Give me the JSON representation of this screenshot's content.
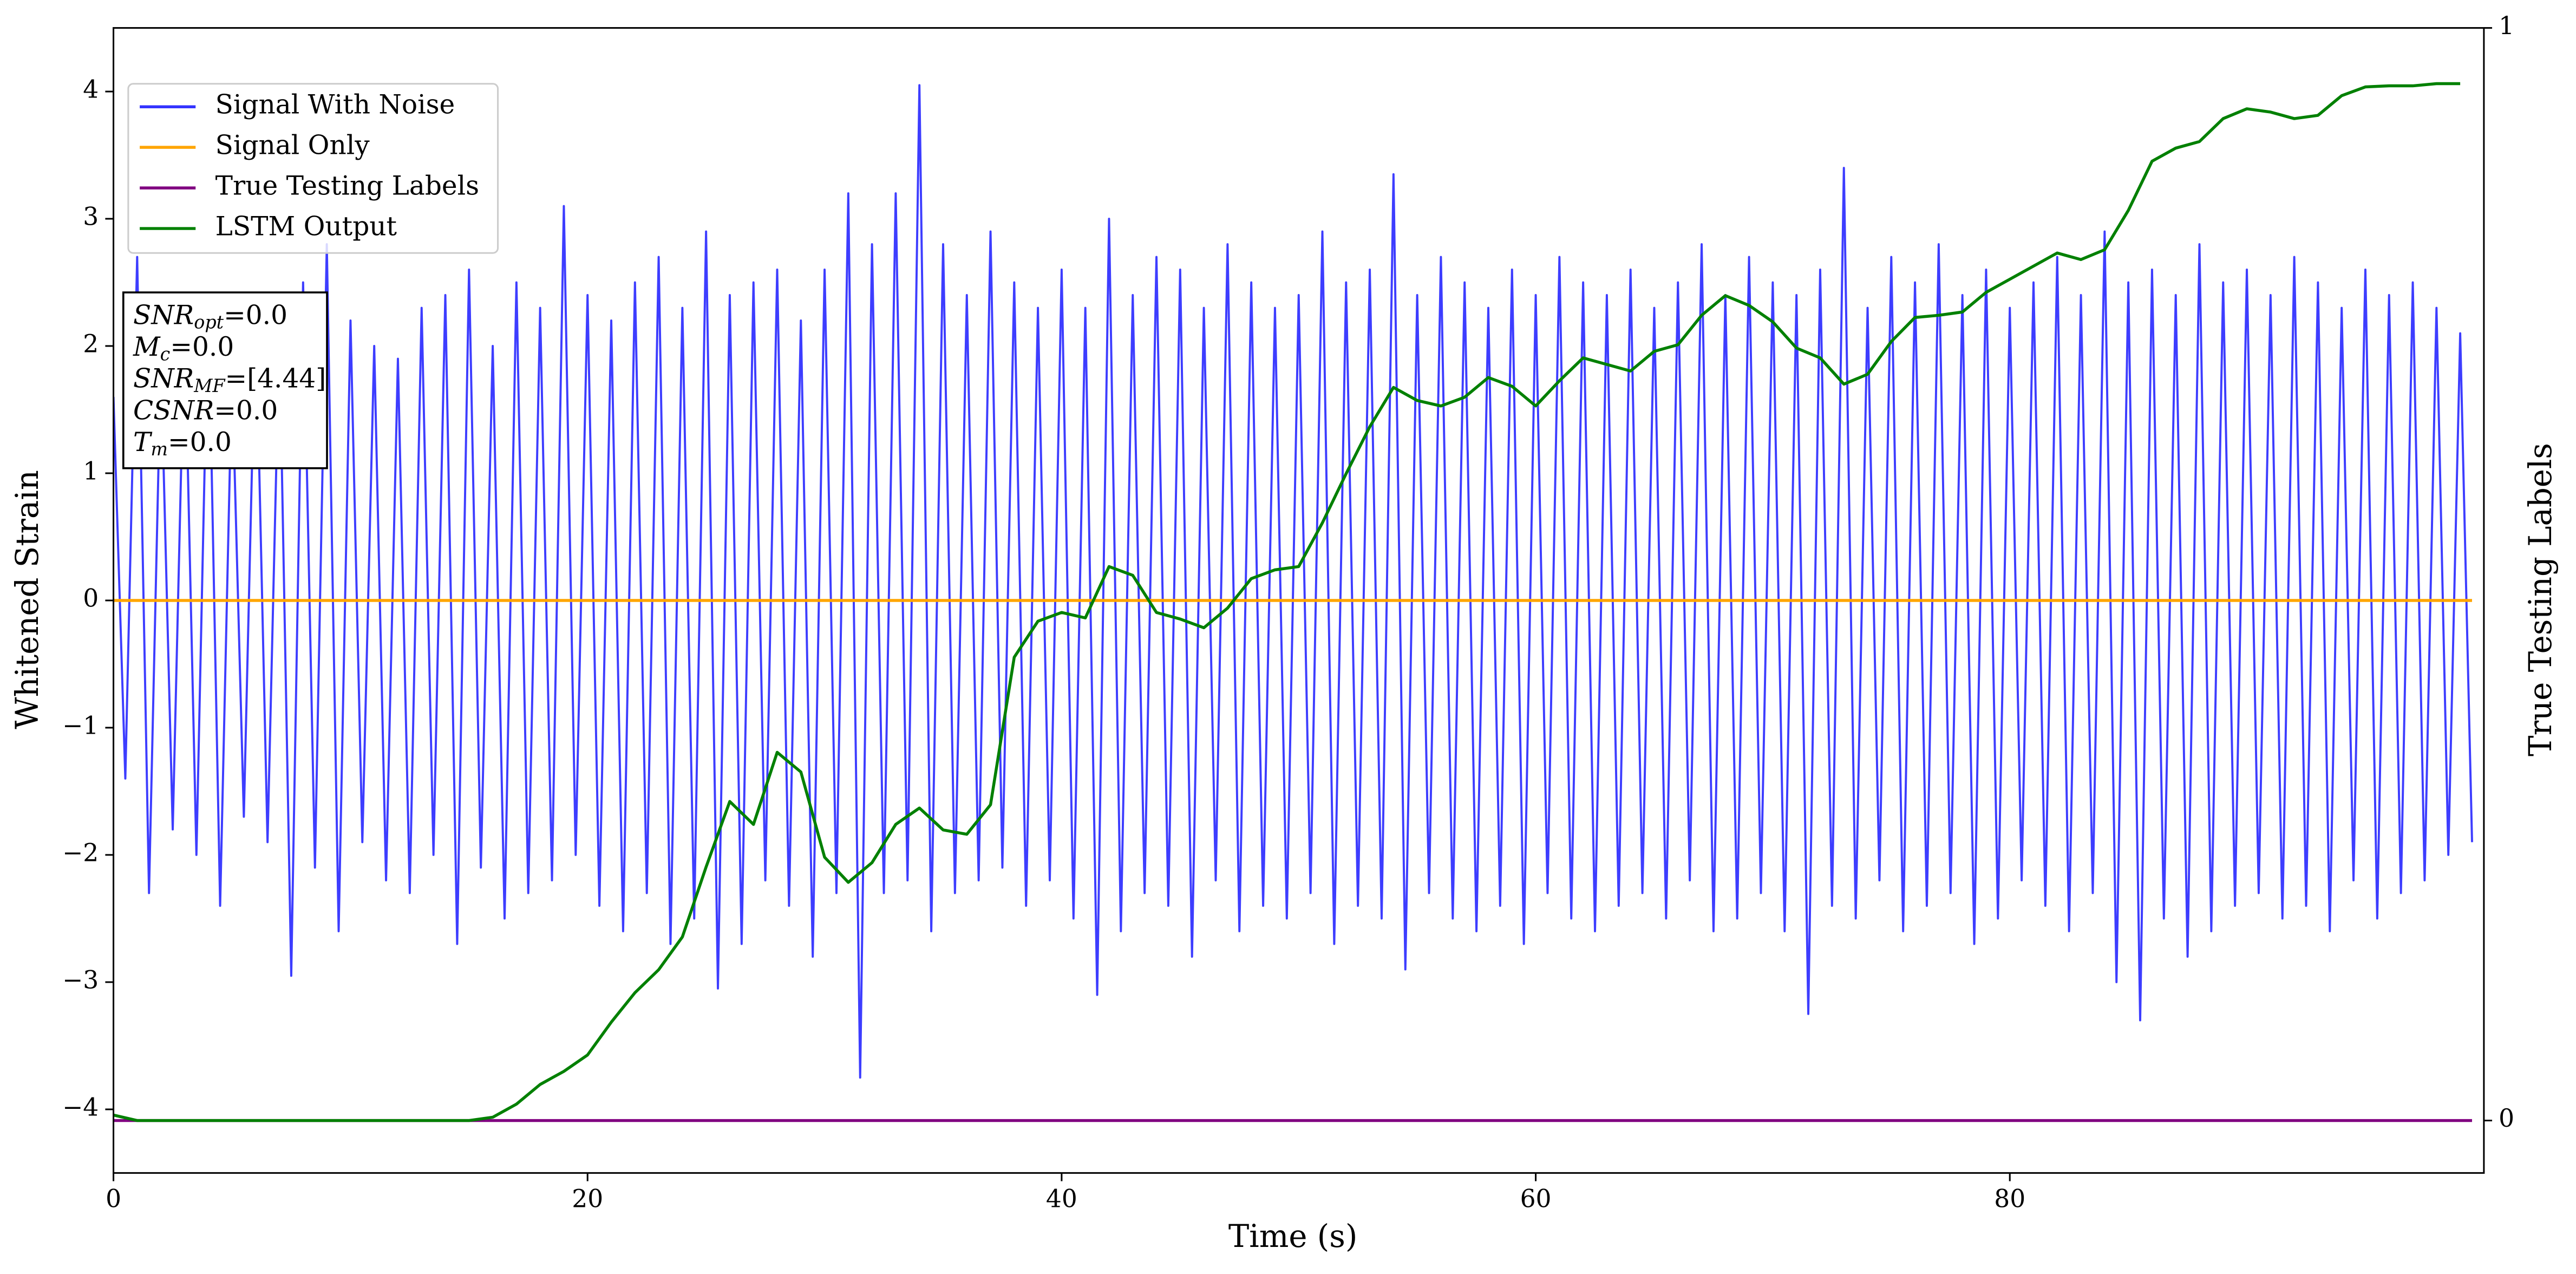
{
  "chart_data": {
    "type": "line",
    "xlabel": "Time (s)",
    "ylabel": "Whitened Strain",
    "y2label": "True Testing Labels",
    "xlim": [
      0,
      100
    ],
    "xticks": [
      0,
      20,
      40,
      60,
      80
    ],
    "ylim": [
      -4.5,
      4.5
    ],
    "yticks": [
      {
        "value": -4,
        "label": "−4"
      },
      {
        "value": -3,
        "label": "−3"
      },
      {
        "value": -2,
        "label": "−2"
      },
      {
        "value": -1,
        "label": "−1"
      },
      0,
      1,
      2,
      3,
      4
    ],
    "y2lim": [
      -0.048,
      1.0
    ],
    "y2ticks": [
      0,
      1
    ],
    "grid": false,
    "legend": "upper left",
    "annotation_lines": [
      {
        "text": "SNR",
        "sub": "opt",
        "value": "=0.0"
      },
      {
        "text": "M",
        "sub": "c",
        "value": "=0.0"
      },
      {
        "text": "SNR",
        "sub": "MF",
        "value": "=[4.44]"
      },
      {
        "text": "CSNR",
        "value": "=0.0"
      },
      {
        "text": "T",
        "sub": "m",
        "value": "=0.0"
      }
    ],
    "series": [
      {
        "name": "Signal With Noise",
        "color": "#3333ff",
        "x": [
          0,
          0.5,
          1,
          1.5,
          2,
          2.5,
          3,
          3.5,
          4,
          4.5,
          5,
          5.5,
          6,
          6.5,
          7,
          7.5,
          8,
          8.5,
          9,
          9.5,
          10,
          10.5,
          11,
          11.5,
          12,
          12.5,
          13,
          13.5,
          14,
          14.5,
          15,
          15.5,
          16,
          16.5,
          17,
          17.5,
          18,
          18.5,
          19,
          19.5,
          20,
          20.5,
          21,
          21.5,
          22,
          22.5,
          23,
          23.5,
          24,
          24.5,
          25,
          25.5,
          26,
          26.5,
          27,
          27.5,
          28,
          28.5,
          29,
          29.5,
          30,
          30.5,
          31,
          31.5,
          32,
          32.5,
          33,
          33.5,
          34,
          34.5,
          35,
          35.5,
          36,
          36.5,
          37,
          37.5,
          38,
          38.5,
          39,
          39.5,
          40,
          40.5,
          41,
          41.5,
          42,
          42.5,
          43,
          43.5,
          44,
          44.5,
          45,
          45.5,
          46,
          46.5,
          47,
          47.5,
          48,
          48.5,
          49,
          49.5,
          50,
          50.5,
          51,
          51.5,
          52,
          52.5,
          53,
          53.5,
          54,
          54.5,
          55,
          55.5,
          56,
          56.5,
          57,
          57.5,
          58,
          58.5,
          59,
          59.5,
          60,
          60.5,
          61,
          61.5,
          62,
          62.5,
          63,
          63.5,
          64,
          64.5,
          65,
          65.5,
          66,
          66.5,
          67,
          67.5,
          68,
          68.5,
          69,
          69.5,
          70,
          70.5,
          71,
          71.5,
          72,
          72.5,
          73,
          73.5,
          74,
          74.5,
          75,
          75.5,
          76,
          76.5,
          77,
          77.5,
          78,
          78.5,
          79,
          79.5,
          80,
          80.5,
          81,
          81.5,
          82,
          82.5,
          83,
          83.5,
          84,
          84.5,
          85,
          85.5,
          86,
          86.5,
          87,
          87.5,
          88,
          88.5,
          89,
          89.5,
          90,
          90.5,
          91,
          91.5,
          92,
          92.5,
          93,
          93.5,
          94,
          94.5,
          95,
          95.5,
          96,
          96.5,
          97,
          97.5,
          98,
          98.5,
          99,
          99.5
        ],
        "values": [
          1.6,
          -1.4,
          2.7,
          -2.3,
          1.9,
          -1.8,
          2.2,
          -2.0,
          2.4,
          -2.4,
          1.8,
          -1.7,
          2.3,
          -1.9,
          2.1,
          -2.95,
          2.5,
          -2.1,
          2.8,
          -2.6,
          2.2,
          -1.9,
          2.0,
          -2.2,
          1.9,
          -2.3,
          2.3,
          -2.0,
          2.4,
          -2.7,
          2.6,
          -2.1,
          2.0,
          -2.5,
          2.5,
          -2.3,
          2.3,
          -2.2,
          3.1,
          -2.0,
          2.4,
          -2.4,
          2.2,
          -2.6,
          2.5,
          -2.3,
          2.7,
          -2.7,
          2.3,
          -2.5,
          2.9,
          -3.05,
          2.4,
          -2.7,
          2.5,
          -2.2,
          2.6,
          -2.4,
          2.2,
          -2.8,
          2.6,
          -2.3,
          3.2,
          -3.75,
          2.8,
          -2.3,
          3.2,
          -2.2,
          4.05,
          -2.6,
          2.8,
          -2.3,
          2.4,
          -2.2,
          2.9,
          -2.1,
          2.5,
          -2.4,
          2.3,
          -2.2,
          2.6,
          -2.5,
          2.3,
          -3.1,
          3.0,
          -2.6,
          2.4,
          -2.3,
          2.7,
          -2.4,
          2.6,
          -2.8,
          2.3,
          -2.2,
          2.8,
          -2.6,
          2.5,
          -2.4,
          2.3,
          -2.5,
          2.4,
          -2.3,
          2.9,
          -2.7,
          2.5,
          -2.4,
          2.6,
          -2.5,
          3.35,
          -2.9,
          2.4,
          -2.3,
          2.7,
          -2.5,
          2.5,
          -2.6,
          2.3,
          -2.4,
          2.6,
          -2.7,
          2.4,
          -2.3,
          2.7,
          -2.5,
          2.5,
          -2.6,
          2.4,
          -2.4,
          2.6,
          -2.3,
          2.3,
          -2.5,
          2.5,
          -2.2,
          2.8,
          -2.6,
          2.4,
          -2.5,
          2.7,
          -2.3,
          2.5,
          -2.6,
          2.4,
          -3.25,
          2.6,
          -2.4,
          3.4,
          -2.5,
          2.3,
          -2.2,
          2.7,
          -2.6,
          2.5,
          -2.4,
          2.8,
          -2.3,
          2.4,
          -2.7,
          2.6,
          -2.5,
          2.3,
          -2.2,
          2.5,
          -2.4,
          2.7,
          -2.6,
          2.4,
          -2.3,
          2.9,
          -3.0,
          2.5,
          -3.3,
          2.6,
          -2.5,
          2.4,
          -2.8,
          2.8,
          -2.6,
          2.5,
          -2.4,
          2.6,
          -2.3,
          2.4,
          -2.5,
          2.7,
          -2.4,
          2.5,
          -2.6,
          2.3,
          -2.2,
          2.6,
          -2.5,
          2.4,
          -2.3,
          2.5,
          -2.2,
          2.3,
          -2.0,
          2.1,
          -1.9
        ]
      },
      {
        "name": "Signal Only",
        "color": "#ffa500",
        "x": [
          0,
          99.5
        ],
        "values": [
          0,
          0
        ]
      },
      {
        "name": "True Testing Labels",
        "color": "#800080",
        "axis": "y2",
        "x": [
          0,
          99.5
        ],
        "values": [
          0,
          0
        ]
      },
      {
        "name": "LSTM Output",
        "color": "#008000",
        "axis": "y2",
        "x": [
          0,
          1,
          2,
          3,
          4,
          5,
          6,
          7,
          8,
          9,
          10,
          11,
          12,
          13,
          14,
          15,
          16,
          17,
          18,
          19,
          20,
          21,
          22,
          23,
          24,
          25,
          26,
          27,
          28,
          29,
          30,
          31,
          32,
          33,
          34,
          35,
          36,
          37,
          38,
          39,
          40,
          41,
          42,
          43,
          44,
          45,
          46,
          47,
          48,
          49,
          50,
          51,
          52,
          53,
          54,
          55,
          56,
          57,
          58,
          59,
          60,
          61,
          62,
          63,
          64,
          65,
          66,
          67,
          68,
          69,
          70,
          71,
          72,
          73,
          74,
          75,
          76,
          77,
          78,
          79,
          80,
          81,
          82,
          83,
          84,
          85,
          86,
          87,
          88,
          89,
          90,
          91,
          92,
          93,
          94,
          95,
          96,
          97,
          98,
          99
        ],
        "values": [
          0.005,
          0,
          0,
          0,
          0,
          0,
          0,
          0,
          0,
          0,
          0,
          0,
          0,
          0,
          0,
          0,
          0.003,
          0.015,
          0.033,
          0.045,
          0.06,
          0.09,
          0.117,
          0.138,
          0.168,
          0.232,
          0.292,
          0.271,
          0.337,
          0.319,
          0.241,
          0.218,
          0.236,
          0.271,
          0.286,
          0.266,
          0.262,
          0.289,
          0.424,
          0.457,
          0.465,
          0.46,
          0.507,
          0.499,
          0.465,
          0.459,
          0.451,
          0.469,
          0.496,
          0.504,
          0.507,
          0.547,
          0.592,
          0.635,
          0.671,
          0.659,
          0.654,
          0.662,
          0.68,
          0.672,
          0.654,
          0.677,
          0.698,
          0.692,
          0.686,
          0.704,
          0.71,
          0.737,
          0.755,
          0.746,
          0.731,
          0.707,
          0.698,
          0.674,
          0.683,
          0.713,
          0.735,
          0.737,
          0.74,
          0.758,
          0.77,
          0.782,
          0.794,
          0.788,
          0.797,
          0.833,
          0.878,
          0.89,
          0.896,
          0.917,
          0.926,
          0.923,
          0.917,
          0.92,
          0.938,
          0.946,
          0.947,
          0.947,
          0.949,
          0.949
        ]
      }
    ]
  }
}
